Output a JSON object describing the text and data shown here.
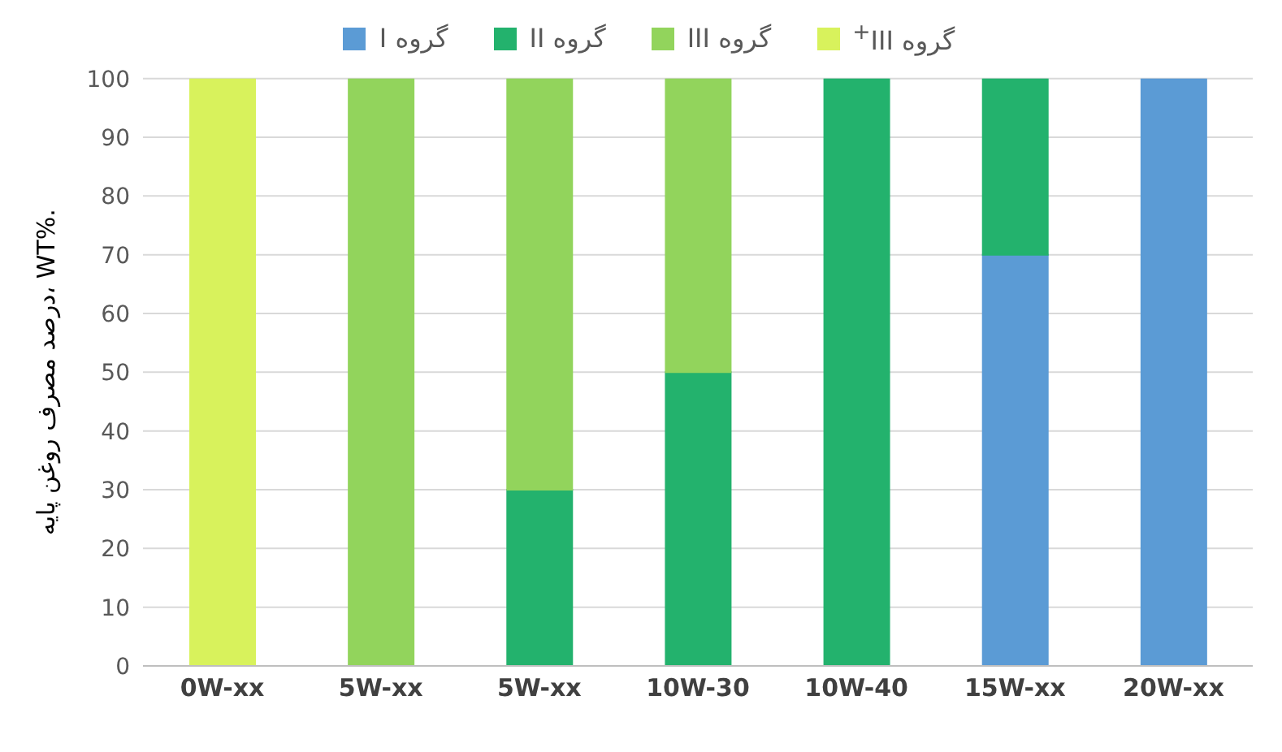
{
  "chart_data": {
    "type": "bar",
    "stacked": true,
    "ylabel": "درصد مصرف روغن پایه، WT%.",
    "categories": [
      "0W-xx",
      "5W-xx",
      "5W-xx",
      "10W-30",
      "10W-40",
      "15W-xx",
      "20W-xx"
    ],
    "series": [
      {
        "name": "گروه I",
        "color": "#5b9bd5",
        "values": [
          0,
          0,
          0,
          0,
          0,
          70,
          100
        ]
      },
      {
        "name": "گروه II",
        "color": "#23b26d",
        "values": [
          0,
          0,
          30,
          50,
          100,
          30,
          0
        ]
      },
      {
        "name": "گروه III",
        "color": "#92d45c",
        "values": [
          0,
          100,
          70,
          50,
          0,
          0,
          0
        ]
      },
      {
        "name": "گروه III$^{+}$",
        "color": "#d8f25c",
        "values": [
          100,
          0,
          0,
          0,
          0,
          0,
          0
        ]
      }
    ],
    "ylim": [
      0,
      100
    ],
    "yticks": [
      0,
      10,
      20,
      30,
      40,
      50,
      60,
      70,
      80,
      90,
      100
    ],
    "grid": "y",
    "legend": "top"
  }
}
